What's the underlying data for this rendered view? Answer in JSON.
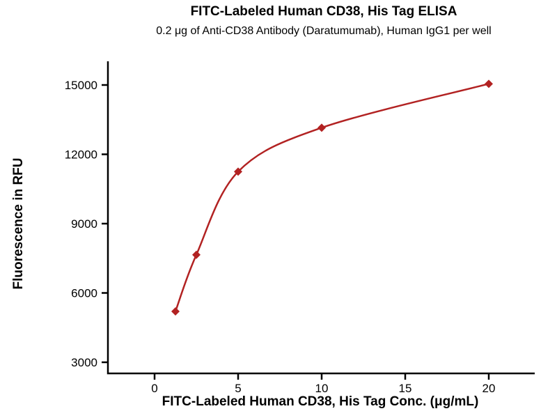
{
  "chart_data": {
    "type": "scatter",
    "title": "FITC-Labeled Human CD38, His Tag ELISA",
    "subtitle": "0.2 μg of Anti-CD38 Antibody (Daratumumab), Human IgG1 per well",
    "xlabel": "FITC-Labeled Human CD38, His Tag Conc. (μg/mL)",
    "ylabel": "Fluorescence in RFU",
    "x": [
      1.25,
      2.5,
      5,
      10,
      20
    ],
    "y": [
      5200,
      7650,
      11250,
      13150,
      15050
    ],
    "x_ticks": [
      0,
      5,
      10,
      15,
      20
    ],
    "y_ticks": [
      3000,
      6000,
      9000,
      12000,
      15000
    ],
    "xlim": [
      -2.8,
      22.75
    ],
    "ylim": [
      2500,
      15900
    ],
    "marker": "diamond",
    "curve": "smooth-fit-through-points",
    "series_color": "#B22222",
    "axis_color": "#000000",
    "grid": false,
    "legend": "none"
  }
}
